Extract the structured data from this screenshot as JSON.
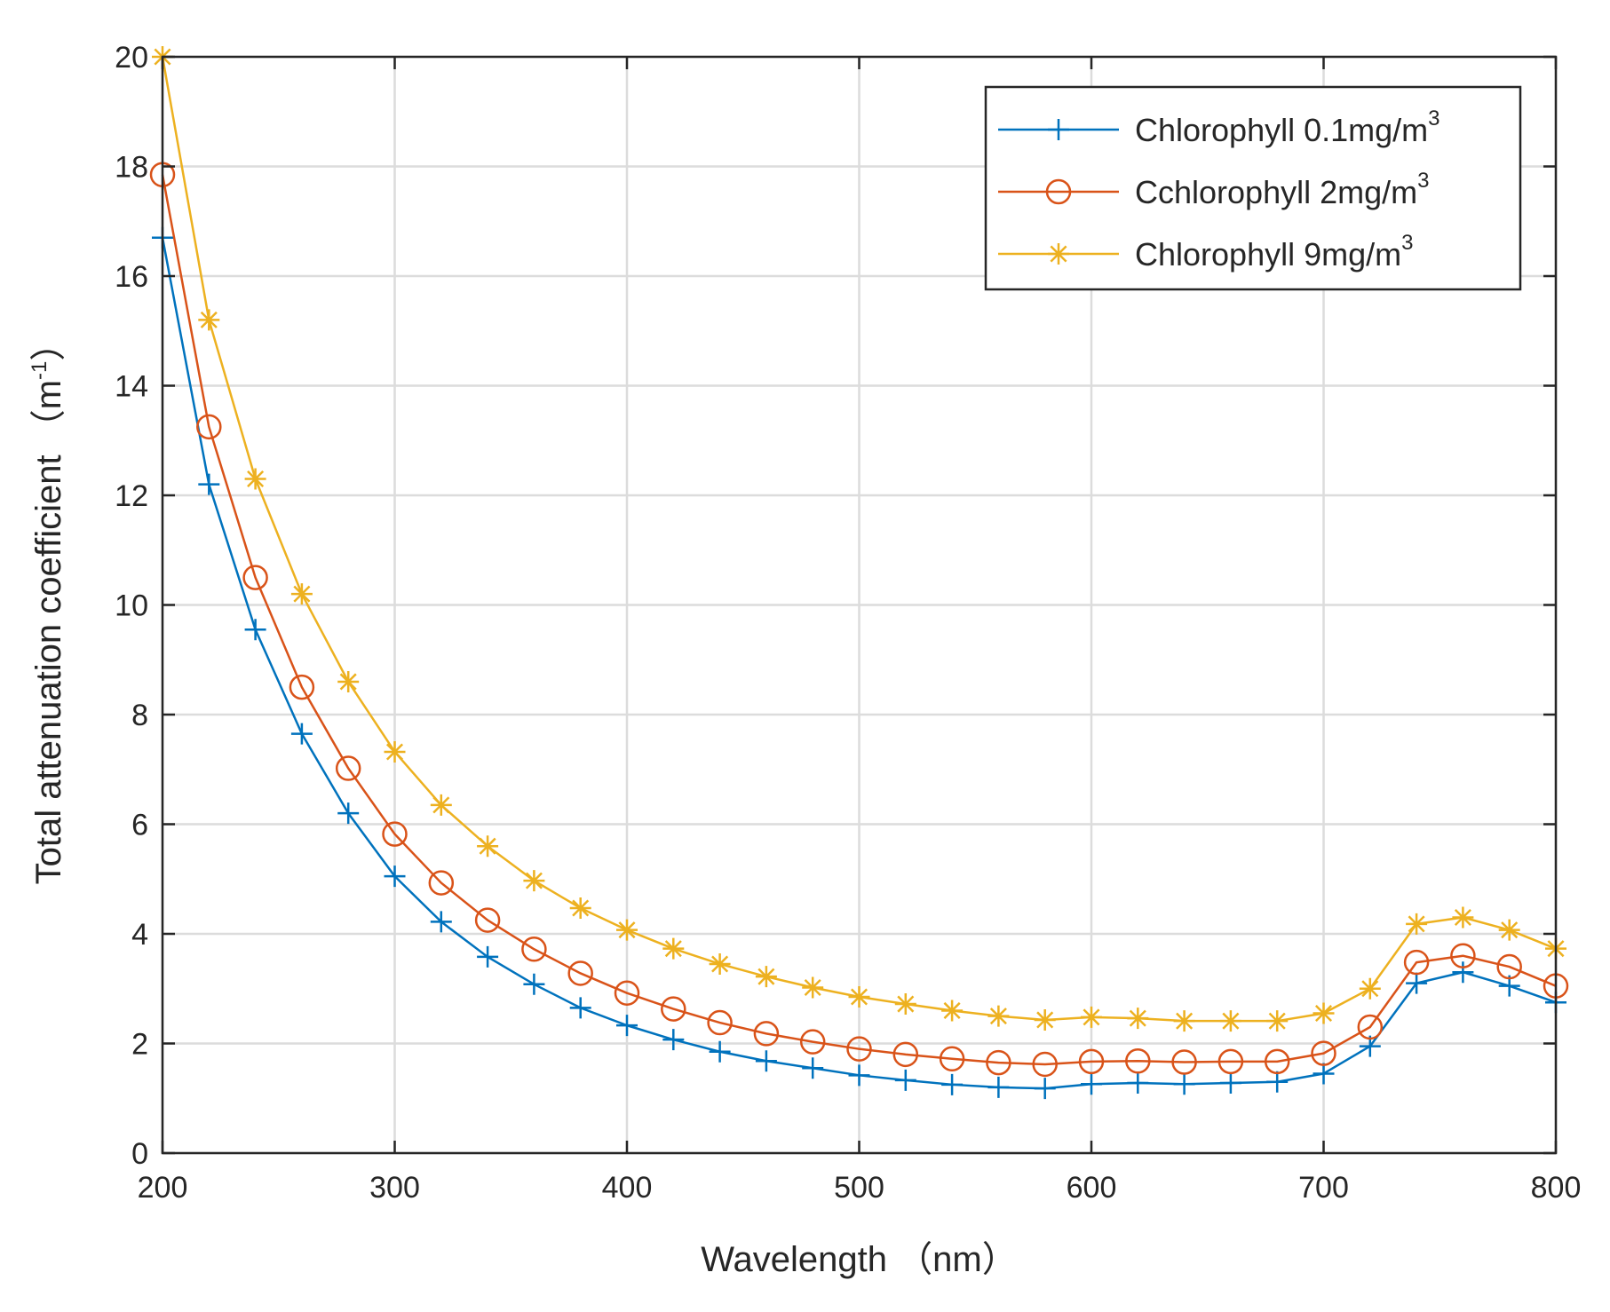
{
  "chart_data": {
    "type": "line",
    "title": "",
    "xlabel": "Wavelength （nm）",
    "ylabel": "Total attenuation coefficient （m",
    "ylabel_superscript": "-1",
    "ylabel_suffix": "）",
    "xlim": [
      200,
      800
    ],
    "ylim": [
      0,
      20
    ],
    "grid": true,
    "legend_position": "top-right",
    "x_ticks": [
      200,
      300,
      400,
      500,
      600,
      700,
      800
    ],
    "y_ticks": [
      0,
      2,
      4,
      6,
      8,
      10,
      12,
      14,
      16,
      18,
      20
    ],
    "x": [
      200,
      220,
      240,
      260,
      280,
      300,
      320,
      340,
      360,
      380,
      400,
      420,
      440,
      460,
      480,
      500,
      520,
      540,
      560,
      580,
      600,
      620,
      640,
      660,
      680,
      700,
      720,
      740,
      760,
      780,
      800
    ],
    "series": [
      {
        "name": "Chlorophyll 0.1mg/m",
        "superscript": "3",
        "color": "#0072BD",
        "marker": "plus",
        "values": [
          16.7,
          12.2,
          9.55,
          7.65,
          6.2,
          5.05,
          4.22,
          3.58,
          3.08,
          2.65,
          2.33,
          2.07,
          1.85,
          1.68,
          1.55,
          1.42,
          1.33,
          1.25,
          1.2,
          1.18,
          1.26,
          1.28,
          1.26,
          1.28,
          1.3,
          1.45,
          1.95,
          3.1,
          3.3,
          3.05,
          2.75
        ]
      },
      {
        "name": "Cchlorophyll 2mg/m",
        "superscript": "3",
        "color": "#D95319",
        "marker": "circle",
        "values": [
          17.85,
          13.25,
          10.5,
          8.5,
          7.02,
          5.82,
          4.93,
          4.25,
          3.72,
          3.28,
          2.92,
          2.63,
          2.38,
          2.18,
          2.03,
          1.9,
          1.8,
          1.72,
          1.65,
          1.62,
          1.67,
          1.68,
          1.66,
          1.67,
          1.67,
          1.82,
          2.3,
          3.48,
          3.6,
          3.4,
          3.05
        ]
      },
      {
        "name": "Chlorophyll 9mg/m",
        "superscript": "3",
        "color": "#EDB120",
        "marker": "asterisk",
        "values": [
          20.0,
          15.2,
          12.3,
          10.2,
          8.6,
          7.32,
          6.35,
          5.6,
          4.97,
          4.47,
          4.07,
          3.73,
          3.45,
          3.22,
          3.02,
          2.85,
          2.72,
          2.6,
          2.5,
          2.43,
          2.48,
          2.46,
          2.41,
          2.41,
          2.41,
          2.55,
          3.0,
          4.18,
          4.3,
          4.07,
          3.73
        ]
      }
    ]
  }
}
